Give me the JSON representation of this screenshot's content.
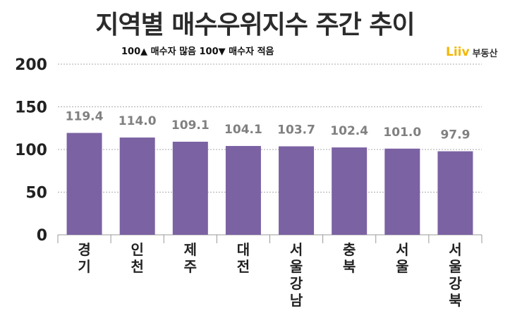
{
  "title": "지역별 매수우위지수 주간 추이",
  "note": "100▲ 매수자 많음 100▼ 매수자 적음",
  "logo": {
    "mark": "Liiv",
    "text": "부동산"
  },
  "colors": {
    "bar": "#7b62a3",
    "value_label": "#808080",
    "grid": "#aaaaaa",
    "axis_text": "#222222",
    "logo_dot": "#f2b705"
  },
  "chart_data": {
    "type": "bar",
    "categories": [
      "경기",
      "인천",
      "제주",
      "대전",
      "서울 강남",
      "충북",
      "서울",
      "서울 강북"
    ],
    "values": [
      119.4,
      114.0,
      109.1,
      104.1,
      103.7,
      102.4,
      101.0,
      97.9
    ],
    "value_labels": [
      "119.4",
      "114.0",
      "109.1",
      "104.1",
      "103.7",
      "102.4",
      "101.0",
      "97.9"
    ],
    "category_lines": [
      [
        "경",
        "기"
      ],
      [
        "인",
        "천"
      ],
      [
        "제",
        "주"
      ],
      [
        "대",
        "전"
      ],
      [
        "서",
        "울",
        "강",
        "남"
      ],
      [
        "충",
        "북"
      ],
      [
        "서",
        "울"
      ],
      [
        "서",
        "울",
        "강",
        "북"
      ]
    ],
    "yticks": [
      0,
      50,
      100,
      150,
      200
    ],
    "ytick_labels": [
      "0",
      "50",
      "100",
      "150",
      "200"
    ],
    "ylim": [
      0,
      200
    ],
    "grid": true,
    "xlabel": "",
    "ylabel": ""
  }
}
